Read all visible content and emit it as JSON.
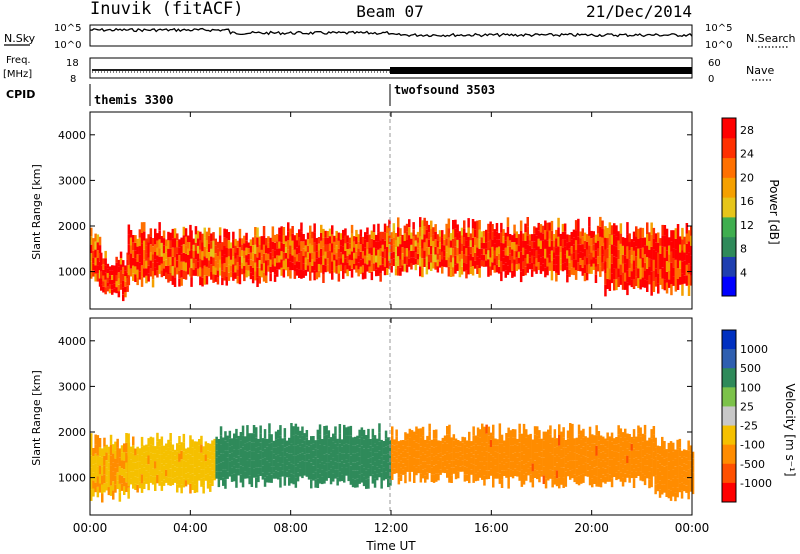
{
  "header": {
    "station": "Inuvik (fitACF)",
    "beam": "Beam 07",
    "date": "21/Dec/2014"
  },
  "top_panels": {
    "nsky_label": "N.Sky",
    "nsky_ticks": [
      "10^5",
      "10^0"
    ],
    "nsearch_label": "N.Search",
    "nsearch_ticks": [
      "10^5",
      "10^0"
    ],
    "freq_label_1": "Freq.",
    "freq_label_2": "[MHz]",
    "freq_ticks": [
      "18",
      "8"
    ],
    "nave_label": "Nave",
    "nave_ticks": [
      "60",
      "0"
    ],
    "cpid_label": "CPID",
    "cpid_segments": [
      {
        "name": "themis 3300",
        "start_hour": 0,
        "end_hour": 12
      },
      {
        "name": "twofsound 3503",
        "start_hour": 12,
        "end_hour": 24
      }
    ]
  },
  "chart_data": [
    {
      "type": "heatmap",
      "title": "",
      "ylabel": "Slant Range [km]",
      "xlabel": "",
      "ylim": [
        180,
        4500
      ],
      "yticks": [
        "1000",
        "2000",
        "3000",
        "4000"
      ],
      "colorbar": {
        "label": "Power [dB]",
        "ticks": [
          "4",
          "8",
          "12",
          "16",
          "20",
          "24",
          "28"
        ],
        "range": [
          0,
          30
        ],
        "colors": [
          "#0000ff",
          "#1f3fb0",
          "#2f8a5a",
          "#3fae4f",
          "#e6c51a",
          "#f5a000",
          "#ff7000",
          "#ff3000",
          "#ff0000"
        ]
      },
      "bands": [
        {
          "start": 0,
          "end": 0.4,
          "range_low": 800,
          "range_high": 1800,
          "value": 24
        },
        {
          "start": 0.4,
          "end": 1.5,
          "range_low": 500,
          "range_high": 1300,
          "value": 28
        },
        {
          "start": 1.5,
          "end": 4.0,
          "range_low": 800,
          "range_high": 1900,
          "value": 26
        },
        {
          "start": 4.0,
          "end": 6.8,
          "range_low": 800,
          "range_high": 1800,
          "value": 24
        },
        {
          "start": 6.8,
          "end": 11.8,
          "range_low": 900,
          "range_high": 1900,
          "value": 26
        },
        {
          "start": 11.8,
          "end": 16.0,
          "range_low": 1000,
          "range_high": 2000,
          "value": 24
        },
        {
          "start": 16.0,
          "end": 20.5,
          "range_low": 900,
          "range_high": 2000,
          "value": 28
        },
        {
          "start": 20.5,
          "end": 24.0,
          "range_low": 600,
          "range_high": 1900,
          "value": 27
        }
      ]
    },
    {
      "type": "heatmap",
      "title": "",
      "ylabel": "Slant Range [km]",
      "xlabel": "Time UT",
      "ylim": [
        180,
        4500
      ],
      "yticks": [
        "1000",
        "2000",
        "3000",
        "4000"
      ],
      "xticks": [
        "00:00",
        "04:00",
        "08:00",
        "12:00",
        "16:00",
        "20:00",
        "00:00"
      ],
      "colorbar": {
        "label": "Velocity [m s⁻¹]",
        "ticks": [
          "1000",
          "500",
          "100",
          "25",
          "-25",
          "-100",
          "-500",
          "-1000"
        ],
        "colors": [
          "#0030c0",
          "#2f5fb0",
          "#2f8a5a",
          "#7cc24a",
          "#c8c8c8",
          "#f5c000",
          "#ff8c00",
          "#ff5000",
          "#ff0000"
        ]
      },
      "bands": [
        {
          "start": 0,
          "end": 1.5,
          "range_low": 600,
          "range_high": 1800,
          "value": -100
        },
        {
          "start": 1.5,
          "end": 5.0,
          "range_low": 800,
          "range_high": 1800,
          "value": -80
        },
        {
          "start": 5.0,
          "end": 12.0,
          "range_low": 900,
          "range_high": 2000,
          "value": 150
        },
        {
          "start": 12.0,
          "end": 15.5,
          "range_low": 1000,
          "range_high": 2000,
          "value": -200
        },
        {
          "start": 15.5,
          "end": 22.5,
          "range_low": 900,
          "range_high": 2000,
          "value": -400
        },
        {
          "start": 22.5,
          "end": 24.0,
          "range_low": 600,
          "range_high": 1700,
          "value": -150
        }
      ]
    }
  ]
}
